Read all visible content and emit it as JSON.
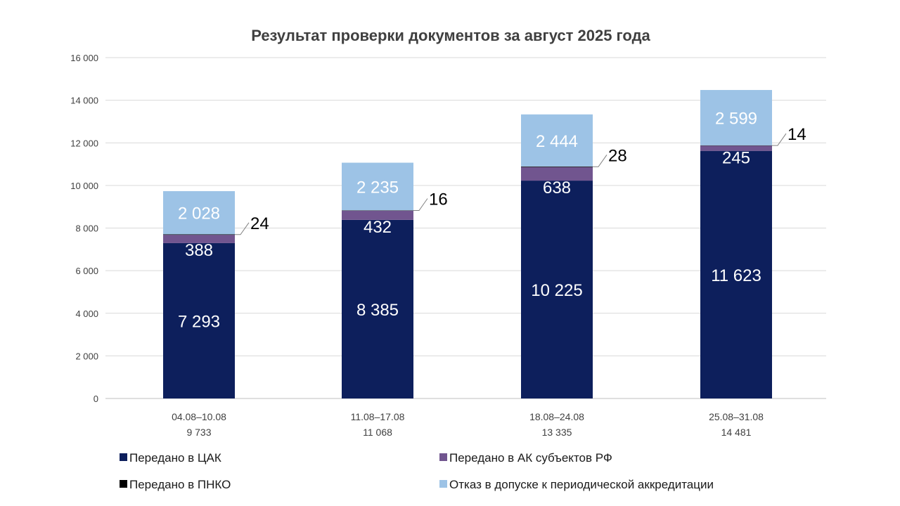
{
  "chart_data": {
    "type": "bar",
    "stacked": true,
    "title": "Результат проверки документов за август 2025 года",
    "categories": [
      "04.08–10.08",
      "11.08–17.08",
      "18.08–24.08",
      "25.08–31.08"
    ],
    "category_totals": [
      "9 733",
      "11 068",
      "13 335",
      "14 481"
    ],
    "ylim": [
      0,
      16000
    ],
    "yticks": [
      0,
      2000,
      4000,
      6000,
      8000,
      10000,
      12000,
      14000,
      16000
    ],
    "ytick_labels": [
      "0",
      "2 000",
      "4 000",
      "6 000",
      "8 000",
      "10 000",
      "12 000",
      "14 000",
      "16 000"
    ],
    "grid": true,
    "legend_position": "bottom",
    "series": [
      {
        "name": "Передано в ЦАК",
        "color": "#0d1f5c",
        "label_color": "#ffffff",
        "values": [
          7293,
          8385,
          10225,
          11623
        ],
        "labels": [
          "7 293",
          "8 385",
          "10 225",
          "11 623"
        ]
      },
      {
        "name": "Передано в АК субъектов РФ",
        "color": "#71558f",
        "label_color": "#ffffff",
        "values": [
          388,
          432,
          638,
          245
        ],
        "labels": [
          "388",
          "432",
          "638",
          "245"
        ]
      },
      {
        "name": "Передано в ПНКО",
        "color": "#000000",
        "label_color": "#000000",
        "values": [
          24,
          16,
          28,
          14
        ],
        "labels": [
          "24",
          "16",
          "28",
          "14"
        ]
      },
      {
        "name": "Отказ в допуске к периодической  аккредитации",
        "color": "#9dc3e6",
        "label_color": "#ffffff",
        "values": [
          2028,
          2235,
          2444,
          2599
        ],
        "labels": [
          "2 028",
          "2 235",
          "2 444",
          "2 599"
        ]
      }
    ]
  }
}
